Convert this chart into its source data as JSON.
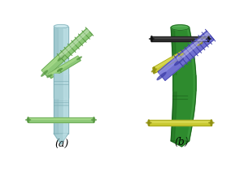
{
  "background_color": "#ffffff",
  "fig_width": 3.0,
  "fig_height": 2.21,
  "dpi": 100,
  "label_a": "(a)",
  "label_b": "(b)",
  "label_fontsize": 9,
  "pfbn": {
    "nail_color": "#a8cfd5",
    "nail_shade": "#7eadb5",
    "nail_light": "#c8e8ee",
    "lag_color": "#8dc878",
    "lag_shade": "#5a9a45",
    "lag_light": "#b0e090"
  },
  "yingze": {
    "nail_color": "#2e8b2e",
    "nail_shade": "#1a5a1a",
    "nail_light": "#4aaa4a",
    "lag_color": "#7070d0",
    "lag_shade": "#4040aa",
    "lag_light": "#9898e8",
    "pin_color": "#c8c830",
    "pin_shade": "#909010",
    "pin_light": "#e0e060"
  }
}
